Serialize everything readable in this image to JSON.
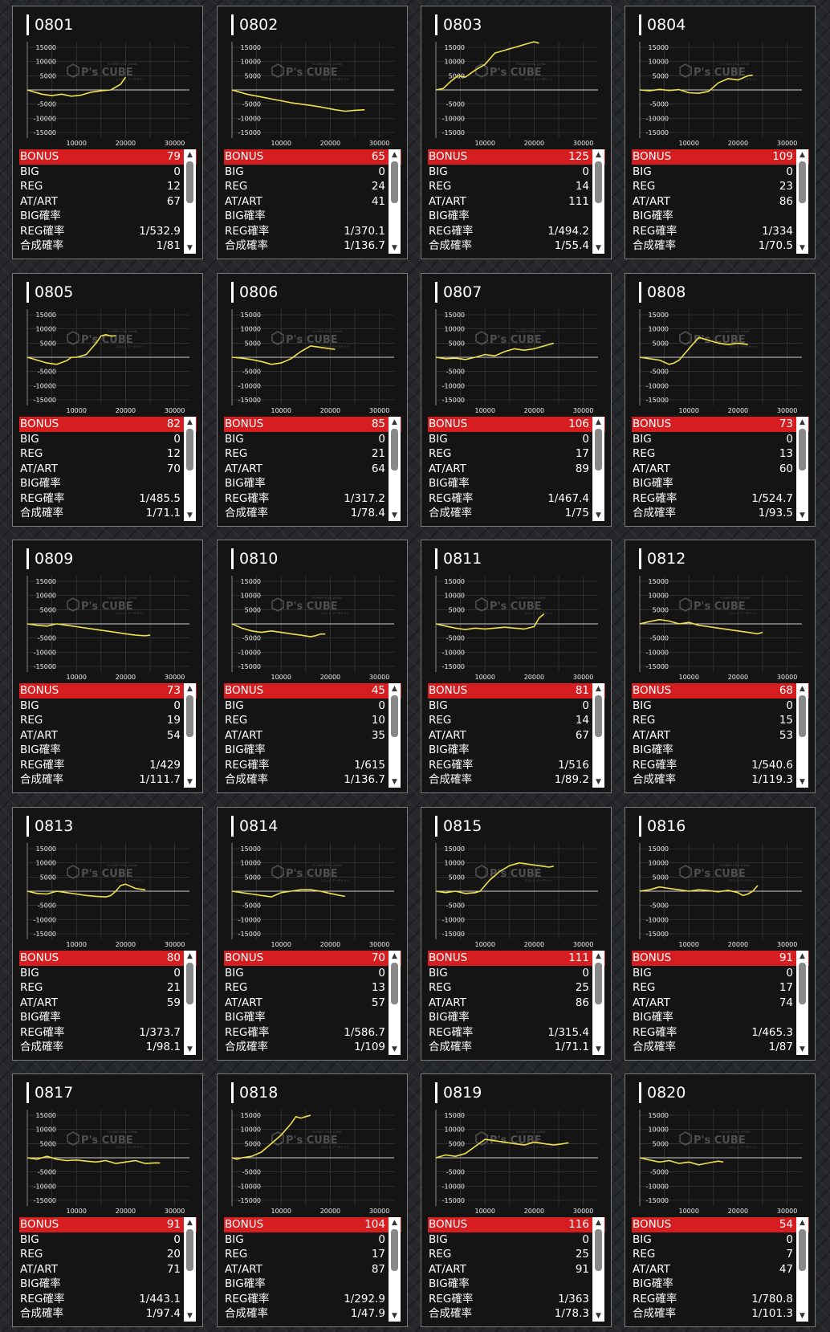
{
  "colors": {
    "panel": "#141414",
    "bonus_bar": "#d61e20",
    "line": "#f0e04a",
    "scrollbar": "#ffffff"
  },
  "labels": {
    "bonus": "BONUS",
    "big": "BIG",
    "reg": "REG",
    "at": "AT/ART",
    "big_prob": "BIG確率",
    "reg_prob": "REG確率",
    "total_prob": "合成確率",
    "scroll_up": "▲",
    "scroll_down": "▼"
  },
  "watermark": {
    "logo": "P's CUBE",
    "tagline_top": "FLOWER STILL JAPAN",
    "tagline_bottom": "スロット データサイト"
  },
  "chart_axes": {
    "y_ticks": [
      "15000",
      "10000",
      "5000",
      "-5000",
      "-10000",
      "-15000"
    ],
    "x_ticks": [
      "10000",
      "20000",
      "30000"
    ]
  },
  "machines": [
    {
      "id": "0801",
      "bonus": "79",
      "big": "0",
      "reg": "12",
      "at": "67",
      "big_prob": "",
      "reg_prob": "1/532.9",
      "total_prob": "1/81",
      "chart_data": {
        "type": "line",
        "xlim": [
          0,
          33000
        ],
        "ylim": [
          -17000,
          17000
        ],
        "x": [
          0,
          1500,
          3000,
          5000,
          7000,
          9000,
          11000,
          13000,
          15000,
          17000,
          19000,
          20000
        ],
        "y": [
          0,
          -800,
          -1500,
          -2000,
          -1500,
          -2200,
          -1800,
          -800,
          -300,
          0,
          2000,
          4500
        ]
      }
    },
    {
      "id": "0802",
      "bonus": "65",
      "big": "0",
      "reg": "24",
      "at": "41",
      "big_prob": "",
      "reg_prob": "1/370.1",
      "total_prob": "1/136.7",
      "chart_data": {
        "type": "line",
        "xlim": [
          0,
          33000
        ],
        "ylim": [
          -17000,
          17000
        ],
        "x": [
          0,
          3000,
          6000,
          9000,
          12000,
          15000,
          18000,
          21000,
          23000,
          25000,
          27000
        ],
        "y": [
          0,
          -1500,
          -2500,
          -3500,
          -4500,
          -5200,
          -6000,
          -7000,
          -7500,
          -7200,
          -7000
        ]
      }
    },
    {
      "id": "0803",
      "bonus": "125",
      "big": "0",
      "reg": "14",
      "at": "111",
      "big_prob": "",
      "reg_prob": "1/494.2",
      "total_prob": "1/55.4",
      "chart_data": {
        "type": "line",
        "xlim": [
          0,
          33000
        ],
        "ylim": [
          -17000,
          17000
        ],
        "x": [
          0,
          1500,
          3000,
          4500,
          6000,
          8000,
          10000,
          12000,
          14000,
          16000,
          18000,
          20000,
          21000
        ],
        "y": [
          0,
          500,
          3000,
          5000,
          4500,
          7000,
          9000,
          13000,
          14000,
          15000,
          16000,
          17000,
          16500
        ]
      }
    },
    {
      "id": "0804",
      "bonus": "109",
      "big": "0",
      "reg": "23",
      "at": "86",
      "big_prob": "",
      "reg_prob": "1/334",
      "total_prob": "1/70.5",
      "chart_data": {
        "type": "line",
        "xlim": [
          0,
          33000
        ],
        "ylim": [
          -17000,
          17000
        ],
        "x": [
          0,
          2000,
          4000,
          6000,
          8000,
          10000,
          12000,
          14000,
          16000,
          18000,
          20000,
          22000,
          23000
        ],
        "y": [
          0,
          -300,
          200,
          -200,
          100,
          -1000,
          -1200,
          -500,
          2500,
          4000,
          3500,
          5000,
          5200
        ]
      }
    },
    {
      "id": "0805",
      "bonus": "82",
      "big": "0",
      "reg": "12",
      "at": "70",
      "big_prob": "",
      "reg_prob": "1/485.5",
      "total_prob": "1/71.1",
      "chart_data": {
        "type": "line",
        "xlim": [
          0,
          33000
        ],
        "ylim": [
          -17000,
          17000
        ],
        "x": [
          0,
          2000,
          4000,
          6000,
          8000,
          9000,
          10000,
          12000,
          13000,
          14000,
          15000,
          16000,
          17000,
          18000
        ],
        "y": [
          0,
          -1000,
          -2000,
          -2500,
          -1200,
          0,
          0,
          1000,
          3000,
          5000,
          7500,
          8000,
          7500,
          7600
        ]
      }
    },
    {
      "id": "0806",
      "bonus": "85",
      "big": "0",
      "reg": "21",
      "at": "64",
      "big_prob": "",
      "reg_prob": "1/317.2",
      "total_prob": "1/78.4",
      "chart_data": {
        "type": "line",
        "xlim": [
          0,
          33000
        ],
        "ylim": [
          -17000,
          17000
        ],
        "x": [
          0,
          2000,
          4000,
          6000,
          8000,
          10000,
          12000,
          14000,
          16000,
          18000,
          20000,
          21000
        ],
        "y": [
          0,
          -300,
          -800,
          -1500,
          -2500,
          -2000,
          -500,
          2000,
          4000,
          3500,
          3000,
          2800
        ]
      }
    },
    {
      "id": "0807",
      "bonus": "106",
      "big": "0",
      "reg": "17",
      "at": "89",
      "big_prob": "",
      "reg_prob": "1/467.4",
      "total_prob": "1/75",
      "chart_data": {
        "type": "line",
        "xlim": [
          0,
          33000
        ],
        "ylim": [
          -17000,
          17000
        ],
        "x": [
          0,
          2000,
          4000,
          6000,
          8000,
          10000,
          12000,
          14000,
          16000,
          18000,
          20000,
          22000,
          24000
        ],
        "y": [
          0,
          -500,
          -300,
          -800,
          0,
          1000,
          500,
          2000,
          3000,
          2500,
          3000,
          4000,
          5000
        ]
      }
    },
    {
      "id": "0808",
      "bonus": "73",
      "big": "0",
      "reg": "13",
      "at": "60",
      "big_prob": "",
      "reg_prob": "1/524.7",
      "total_prob": "1/93.5",
      "chart_data": {
        "type": "line",
        "xlim": [
          0,
          33000
        ],
        "ylim": [
          -17000,
          17000
        ],
        "x": [
          0,
          2000,
          4000,
          6000,
          7000,
          8000,
          9000,
          10000,
          11000,
          12000,
          14000,
          16000,
          18000,
          20000,
          22000
        ],
        "y": [
          0,
          -500,
          -1000,
          -2500,
          -2000,
          -1000,
          1000,
          3000,
          5000,
          7000,
          6000,
          5000,
          4500,
          5000,
          4500
        ]
      }
    },
    {
      "id": "0809",
      "bonus": "73",
      "big": "0",
      "reg": "19",
      "at": "54",
      "big_prob": "",
      "reg_prob": "1/429",
      "total_prob": "1/111.7",
      "chart_data": {
        "type": "line",
        "xlim": [
          0,
          33000
        ],
        "ylim": [
          -17000,
          17000
        ],
        "x": [
          0,
          2000,
          4000,
          6000,
          8000,
          10000,
          12000,
          14000,
          16000,
          18000,
          20000,
          22000,
          24000,
          25000
        ],
        "y": [
          0,
          -500,
          -800,
          0,
          -500,
          -1000,
          -1500,
          -2000,
          -2500,
          -3000,
          -3500,
          -4000,
          -4200,
          -4000
        ]
      }
    },
    {
      "id": "0810",
      "bonus": "45",
      "big": "0",
      "reg": "10",
      "at": "35",
      "big_prob": "",
      "reg_prob": "1/615",
      "total_prob": "1/136.7",
      "chart_data": {
        "type": "line",
        "xlim": [
          0,
          33000
        ],
        "ylim": [
          -17000,
          17000
        ],
        "x": [
          0,
          2000,
          4000,
          6000,
          8000,
          10000,
          12000,
          14000,
          16000,
          17000,
          18000,
          19000
        ],
        "y": [
          0,
          -1500,
          -2500,
          -3000,
          -2500,
          -3000,
          -3500,
          -4000,
          -4500,
          -4200,
          -3600,
          -3600
        ]
      }
    },
    {
      "id": "0811",
      "bonus": "81",
      "big": "0",
      "reg": "14",
      "at": "67",
      "big_prob": "",
      "reg_prob": "1/516",
      "total_prob": "1/89.2",
      "chart_data": {
        "type": "line",
        "xlim": [
          0,
          33000
        ],
        "ylim": [
          -17000,
          17000
        ],
        "x": [
          0,
          2000,
          4000,
          6000,
          8000,
          10000,
          12000,
          14000,
          16000,
          18000,
          20000,
          21000,
          22000
        ],
        "y": [
          0,
          -800,
          -1500,
          -2000,
          -1500,
          -1800,
          -1500,
          -1200,
          -1500,
          -1800,
          -1000,
          2000,
          3500
        ]
      }
    },
    {
      "id": "0812",
      "bonus": "68",
      "big": "0",
      "reg": "15",
      "at": "53",
      "big_prob": "",
      "reg_prob": "1/540.6",
      "total_prob": "1/119.3",
      "chart_data": {
        "type": "line",
        "xlim": [
          0,
          33000
        ],
        "ylim": [
          -17000,
          17000
        ],
        "x": [
          0,
          2000,
          4000,
          6000,
          8000,
          10000,
          12000,
          14000,
          16000,
          18000,
          20000,
          22000,
          24000,
          25000
        ],
        "y": [
          0,
          800,
          1500,
          1000,
          0,
          500,
          -500,
          -1000,
          -1500,
          -2000,
          -2500,
          -3000,
          -3500,
          -3000
        ]
      }
    },
    {
      "id": "0813",
      "bonus": "80",
      "big": "0",
      "reg": "21",
      "at": "59",
      "big_prob": "",
      "reg_prob": "1/373.7",
      "total_prob": "1/98.1",
      "chart_data": {
        "type": "line",
        "xlim": [
          0,
          33000
        ],
        "ylim": [
          -17000,
          17000
        ],
        "x": [
          0,
          2000,
          4000,
          6000,
          8000,
          10000,
          12000,
          14000,
          16000,
          17000,
          18000,
          19000,
          20000,
          22000,
          24000
        ],
        "y": [
          0,
          -800,
          -1000,
          0,
          -500,
          -1000,
          -1500,
          -1800,
          -2000,
          -1500,
          0,
          2000,
          2500,
          1000,
          500
        ]
      }
    },
    {
      "id": "0814",
      "bonus": "70",
      "big": "0",
      "reg": "13",
      "at": "57",
      "big_prob": "",
      "reg_prob": "1/586.7",
      "total_prob": "1/109",
      "chart_data": {
        "type": "line",
        "xlim": [
          0,
          33000
        ],
        "ylim": [
          -17000,
          17000
        ],
        "x": [
          0,
          2000,
          4000,
          6000,
          8000,
          10000,
          12000,
          14000,
          16000,
          18000,
          20000,
          22000,
          23000
        ],
        "y": [
          0,
          -500,
          -1000,
          -1500,
          -2000,
          -500,
          0,
          500,
          500,
          0,
          -800,
          -1500,
          -1800
        ]
      }
    },
    {
      "id": "0815",
      "bonus": "111",
      "big": "0",
      "reg": "25",
      "at": "86",
      "big_prob": "",
      "reg_prob": "1/315.4",
      "total_prob": "1/71.1",
      "chart_data": {
        "type": "line",
        "xlim": [
          0,
          33000
        ],
        "ylim": [
          -17000,
          17000
        ],
        "x": [
          0,
          2000,
          4000,
          6000,
          8000,
          9000,
          10000,
          11000,
          12000,
          13000,
          15000,
          17000,
          19000,
          21000,
          23000,
          24000
        ],
        "y": [
          0,
          -500,
          0,
          -800,
          -500,
          0,
          2000,
          4000,
          5500,
          7000,
          9000,
          10000,
          9500,
          9000,
          8500,
          8800
        ]
      }
    },
    {
      "id": "0816",
      "bonus": "91",
      "big": "0",
      "reg": "17",
      "at": "74",
      "big_prob": "",
      "reg_prob": "1/465.3",
      "total_prob": "1/87",
      "chart_data": {
        "type": "line",
        "xlim": [
          0,
          33000
        ],
        "ylim": [
          -17000,
          17000
        ],
        "x": [
          0,
          2000,
          4000,
          6000,
          8000,
          10000,
          12000,
          14000,
          16000,
          18000,
          20000,
          21000,
          22000,
          23000,
          24000
        ],
        "y": [
          0,
          500,
          1500,
          1000,
          500,
          0,
          500,
          200,
          -200,
          300,
          -500,
          -1500,
          -1000,
          0,
          2000
        ]
      }
    },
    {
      "id": "0817",
      "bonus": "91",
      "big": "0",
      "reg": "20",
      "at": "71",
      "big_prob": "",
      "reg_prob": "1/443.1",
      "total_prob": "1/97.4",
      "chart_data": {
        "type": "line",
        "xlim": [
          0,
          33000
        ],
        "ylim": [
          -17000,
          17000
        ],
        "x": [
          0,
          2000,
          4000,
          6000,
          8000,
          10000,
          12000,
          14000,
          16000,
          18000,
          20000,
          22000,
          24000,
          26000,
          27000
        ],
        "y": [
          0,
          -500,
          500,
          -500,
          -1000,
          -800,
          -1200,
          -1500,
          -1000,
          -2000,
          -1500,
          -1000,
          -2000,
          -1800,
          -1800
        ]
      }
    },
    {
      "id": "0818",
      "bonus": "104",
      "big": "0",
      "reg": "17",
      "at": "87",
      "big_prob": "",
      "reg_prob": "1/292.9",
      "total_prob": "1/47.9",
      "chart_data": {
        "type": "line",
        "xlim": [
          0,
          33000
        ],
        "ylim": [
          -17000,
          17000
        ],
        "x": [
          0,
          1000,
          2000,
          4000,
          6000,
          8000,
          10000,
          12000,
          13000,
          14000,
          15000,
          16000
        ],
        "y": [
          0,
          -500,
          0,
          500,
          2000,
          5000,
          8000,
          12000,
          14500,
          14000,
          14500,
          15000
        ]
      }
    },
    {
      "id": "0819",
      "bonus": "116",
      "big": "0",
      "reg": "25",
      "at": "91",
      "big_prob": "",
      "reg_prob": "1/363",
      "total_prob": "1/78.3",
      "chart_data": {
        "type": "line",
        "xlim": [
          0,
          33000
        ],
        "ylim": [
          -17000,
          17000
        ],
        "x": [
          0,
          2000,
          4000,
          6000,
          8000,
          10000,
          12000,
          14000,
          16000,
          18000,
          20000,
          22000,
          24000,
          26000,
          27000
        ],
        "y": [
          0,
          1000,
          500,
          1500,
          4000,
          6500,
          6000,
          5500,
          5000,
          4500,
          5500,
          5000,
          4500,
          5000,
          5300
        ]
      }
    },
    {
      "id": "0820",
      "bonus": "54",
      "big": "0",
      "reg": "7",
      "at": "47",
      "big_prob": "",
      "reg_prob": "1/780.8",
      "total_prob": "1/101.3",
      "chart_data": {
        "type": "line",
        "xlim": [
          0,
          33000
        ],
        "ylim": [
          -17000,
          17000
        ],
        "x": [
          0,
          2000,
          4000,
          6000,
          8000,
          10000,
          12000,
          14000,
          16000,
          17000
        ],
        "y": [
          0,
          -800,
          -1500,
          -1000,
          -2000,
          -1500,
          -2500,
          -1800,
          -1200,
          -1500
        ]
      }
    }
  ]
}
